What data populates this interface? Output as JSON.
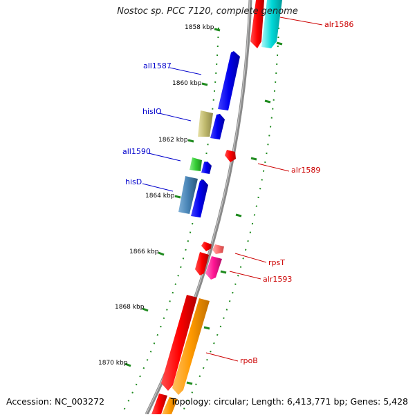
{
  "title": "Nostoc sp. PCC 7120, complete genome",
  "footer": {
    "accession": "Accession: NC_003272",
    "topology": "Topology: circular; Length: 6,413,771 bp; Genes: 5,428"
  },
  "colors": {
    "backbone": "#8a8a8a",
    "tick": "#1e8a1e",
    "forward_label": "#cc0000",
    "reverse_label": "#0000cc",
    "kbp_label": "#000000"
  },
  "ruler": {
    "unit": "kbp",
    "ticks": [
      "1858 kbp",
      "1860 kbp",
      "1862 kbp",
      "1864 kbp",
      "1866 kbp",
      "1868 kbp",
      "1870 kbp"
    ]
  },
  "genes": [
    {
      "name": "alr1586",
      "strand": "forward",
      "color": "#ff0000"
    },
    {
      "name": "all1587",
      "strand": "reverse",
      "color": "#0000ee"
    },
    {
      "name": "hisIO",
      "strand": "reverse",
      "color": "#bdb76b"
    },
    {
      "name": "all1590",
      "strand": "reverse",
      "color": "#33cc33"
    },
    {
      "name": "alr1589",
      "strand": "forward",
      "color": "#ff0000"
    },
    {
      "name": "hisD",
      "strand": "reverse",
      "color": "#4682b4"
    },
    {
      "name": "rpsT",
      "strand": "forward",
      "color": "#ff7070"
    },
    {
      "name": "alr1593",
      "strand": "forward",
      "color": "#ff1493"
    },
    {
      "name": "rpoB",
      "strand": "forward",
      "color": "#ff9900"
    }
  ]
}
